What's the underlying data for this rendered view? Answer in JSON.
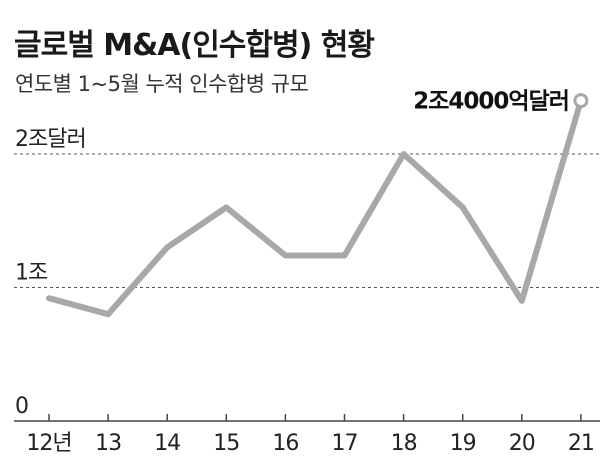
{
  "header": {
    "title": "글로벌 M&A(인수합병) 현황",
    "subtitle": "연도별 1~5월 누적 인수합병 규모"
  },
  "colors": {
    "line": "#a8a8a8",
    "grid": "#555555",
    "axis": "#444444",
    "marker_fill": "#ffffff"
  },
  "chart_data": {
    "type": "line",
    "title": "글로벌 M&A(인수합병) 현황",
    "subtitle": "연도별 1~5월 누적 인수합병 규모",
    "categories": [
      "12년",
      "13",
      "14",
      "15",
      "16",
      "17",
      "18",
      "19",
      "20",
      "21"
    ],
    "series": [
      {
        "values": [
          0.92,
          0.8,
          1.3,
          1.6,
          1.24,
          1.24,
          2.0,
          1.6,
          0.9,
          2.4
        ]
      }
    ],
    "ylim": [
      0,
      2.4
    ],
    "y_ticks": [
      {
        "value": 0,
        "label": "0"
      },
      {
        "value": 1,
        "label": "1조"
      },
      {
        "value": 2,
        "label": "2조달러"
      }
    ],
    "annotation": {
      "index": 9,
      "text": "2조4000억달러"
    },
    "grid": "dashed horizontal",
    "legend": "none"
  }
}
